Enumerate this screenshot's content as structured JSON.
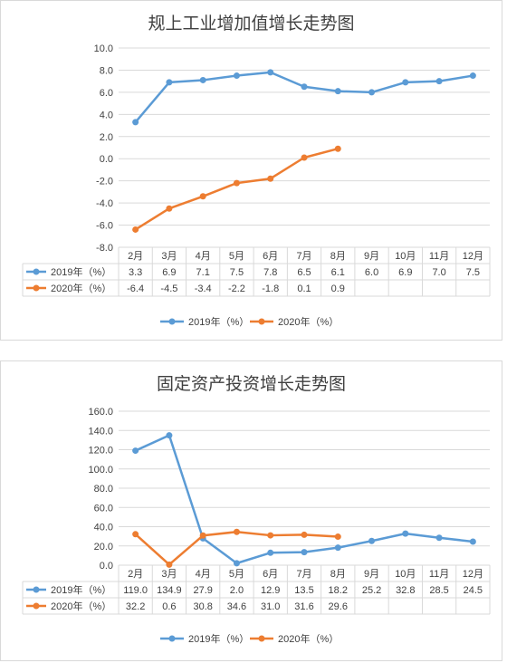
{
  "charts": [
    {
      "title": "规上工业增加值增长走势图",
      "chart_data": {
        "type": "line",
        "categories": [
          "2月",
          "3月",
          "4月",
          "5月",
          "6月",
          "7月",
          "8月",
          "9月",
          "10月",
          "11月",
          "12月"
        ],
        "ylim": [
          -8,
          10
        ],
        "ytick_labels": [
          "-8.0",
          "-6.0",
          "-4.0",
          "-2.0",
          "0.0",
          "2.0",
          "4.0",
          "6.0",
          "8.0",
          "10.0"
        ],
        "ytick_values": [
          -8,
          -6,
          -4,
          -2,
          0,
          2,
          4,
          6,
          8,
          10
        ],
        "grid": true,
        "legend_position": "bottom",
        "data_table": true,
        "series": [
          {
            "name": "2019年（%）",
            "color": "#5b9bd5",
            "values": [
              3.3,
              6.9,
              7.1,
              7.5,
              7.8,
              6.5,
              6.1,
              6.0,
              6.9,
              7.0,
              7.5
            ],
            "labels": [
              "3.3",
              "6.9",
              "7.1",
              "7.5",
              "7.8",
              "6.5",
              "6.1",
              "6.0",
              "6.9",
              "7.0",
              "7.5"
            ]
          },
          {
            "name": "2020年（%）",
            "color": "#ed7d31",
            "values": [
              -6.4,
              -4.5,
              -3.4,
              -2.2,
              -1.8,
              0.1,
              0.9,
              null,
              null,
              null,
              null
            ],
            "labels": [
              "-6.4",
              "-4.5",
              "-3.4",
              "-2.2",
              "-1.8",
              "0.1",
              "0.9",
              "",
              "",
              "",
              ""
            ]
          }
        ]
      }
    },
    {
      "title": "固定资产投资增长走势图",
      "chart_data": {
        "type": "line",
        "categories": [
          "2月",
          "3月",
          "4月",
          "5月",
          "6月",
          "7月",
          "8月",
          "9月",
          "10月",
          "11月",
          "12月"
        ],
        "ylim": [
          0,
          160
        ],
        "ytick_labels": [
          "0.0",
          "20.0",
          "40.0",
          "60.0",
          "80.0",
          "100.0",
          "120.0",
          "140.0",
          "160.0"
        ],
        "ytick_values": [
          0,
          20,
          40,
          60,
          80,
          100,
          120,
          140,
          160
        ],
        "grid": true,
        "legend_position": "bottom",
        "data_table": true,
        "series": [
          {
            "name": "2019年（%）",
            "color": "#5b9bd5",
            "values": [
              119.0,
              134.9,
              27.9,
              2.0,
              12.9,
              13.5,
              18.2,
              25.2,
              32.8,
              28.5,
              24.5
            ],
            "labels": [
              "119.0",
              "134.9",
              "27.9",
              "2.0",
              "12.9",
              "13.5",
              "18.2",
              "25.2",
              "32.8",
              "28.5",
              "24.5"
            ]
          },
          {
            "name": "2020年（%）",
            "color": "#ed7d31",
            "values": [
              32.2,
              0.6,
              30.8,
              34.6,
              31.0,
              31.6,
              29.6,
              null,
              null,
              null,
              null
            ],
            "labels": [
              "32.2",
              "0.6",
              "30.8",
              "34.6",
              "31.0",
              "31.6",
              "29.6",
              "",
              "",
              "",
              ""
            ]
          }
        ]
      }
    }
  ]
}
